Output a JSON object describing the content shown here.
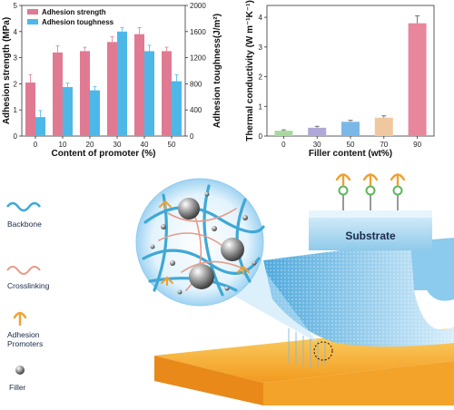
{
  "colors": {
    "strength": "#e07a93",
    "toughness": "#4db8e8",
    "substrate": "#9fd4f0",
    "backbone": "#3fa8d6",
    "crosslink": "#e69a8a",
    "promoter": "#f0a030",
    "filler": "#9a9a9a",
    "base": "#f7b733"
  },
  "chart_data": [
    {
      "type": "bar",
      "categories": [
        "0",
        "10",
        "20",
        "30",
        "40",
        "50"
      ],
      "series": [
        {
          "name": "Adhesion strength",
          "axis": "left",
          "values": [
            2.05,
            3.2,
            3.25,
            3.6,
            3.9,
            3.25
          ],
          "errors": [
            0.3,
            0.25,
            0.15,
            0.2,
            0.25,
            0.15
          ]
        },
        {
          "name": "Adhesion toughness",
          "axis": "right",
          "values": [
            290,
            750,
            700,
            1600,
            1300,
            840
          ],
          "errors": [
            100,
            60,
            60,
            60,
            90,
            100
          ]
        }
      ],
      "xlabel": "Content of promoter (%)",
      "ylabel": "Adhesion strength (MPa)",
      "y2label": "Adhesion toughness(J/m²)",
      "ylim": [
        0,
        5
      ],
      "y2lim": [
        0,
        2000
      ],
      "yticks": [
        "0",
        "1",
        "2",
        "3",
        "4",
        "5"
      ],
      "y2ticks": [
        "0",
        "400",
        "800",
        "1200",
        "1600",
        "2000"
      ],
      "legend": "top-left"
    },
    {
      "type": "bar",
      "categories": [
        "0",
        "30",
        "50",
        "70",
        "90"
      ],
      "values": [
        0.18,
        0.28,
        0.48,
        0.62,
        3.8
      ],
      "errors": [
        0.03,
        0.05,
        0.05,
        0.06,
        0.25
      ],
      "bar_colors": [
        "#a8d8a0",
        "#b0a8d8",
        "#7ab8e8",
        "#f0c8a0",
        "#e8879c"
      ],
      "xlabel": "Filler content (wt%)",
      "ylabel": "Thermal conductivity (W m⁻¹K⁻¹)",
      "ylim": [
        0,
        4.4
      ],
      "yticks": [
        "0",
        "1",
        "2",
        "3",
        "4"
      ]
    }
  ],
  "schematic": {
    "substrate_label": "Substrate",
    "legend": [
      {
        "id": "backbone",
        "label": "Backbone"
      },
      {
        "id": "crosslinking",
        "label": "Crosslinking"
      },
      {
        "id": "promoter",
        "label": "Adhesion Promoters"
      },
      {
        "id": "filler",
        "label": "Filler"
      }
    ]
  }
}
